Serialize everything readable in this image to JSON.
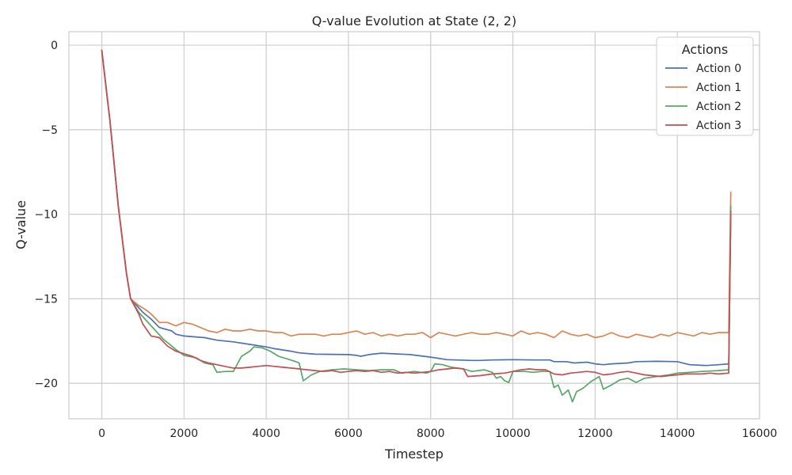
{
  "chart_data": {
    "type": "line",
    "title": "Q-value Evolution at State (2, 2)",
    "xlabel": "Timestep",
    "ylabel": "Q-value",
    "xlim": [
      -800,
      16000
    ],
    "ylim": [
      -22.1,
      0.8
    ],
    "xticks": [
      0,
      2000,
      4000,
      6000,
      8000,
      10000,
      12000,
      14000,
      16000
    ],
    "xtick_labels": [
      "0",
      "2000",
      "4000",
      "6000",
      "8000",
      "10000",
      "12000",
      "14000",
      "16000"
    ],
    "yticks": [
      0,
      -5,
      -10,
      -15,
      -20
    ],
    "ytick_labels": [
      "0",
      "−5",
      "−10",
      "−15",
      "−20"
    ],
    "grid": true,
    "legend": {
      "title": "Actions",
      "position": "top-right"
    },
    "series": [
      {
        "name": "Action 0",
        "color": "#4c72b0",
        "points": [
          [
            0,
            -0.3
          ],
          [
            200,
            -4.5
          ],
          [
            400,
            -9.5
          ],
          [
            600,
            -13.5
          ],
          [
            700,
            -15.0
          ],
          [
            1000,
            -15.8
          ],
          [
            1200,
            -16.2
          ],
          [
            1400,
            -16.7
          ],
          [
            1700,
            -16.9
          ],
          [
            1800,
            -17.1
          ],
          [
            2000,
            -17.2
          ],
          [
            2500,
            -17.3
          ],
          [
            2800,
            -17.45
          ],
          [
            3200,
            -17.55
          ],
          [
            3600,
            -17.7
          ],
          [
            4000,
            -17.85
          ],
          [
            4200,
            -17.95
          ],
          [
            4600,
            -18.1
          ],
          [
            4800,
            -18.2
          ],
          [
            5200,
            -18.28
          ],
          [
            6000,
            -18.3
          ],
          [
            6200,
            -18.35
          ],
          [
            6300,
            -18.4
          ],
          [
            6500,
            -18.3
          ],
          [
            6800,
            -18.22
          ],
          [
            7500,
            -18.3
          ],
          [
            8000,
            -18.45
          ],
          [
            8400,
            -18.6
          ],
          [
            9000,
            -18.65
          ],
          [
            9200,
            -18.65
          ],
          [
            9500,
            -18.62
          ],
          [
            10000,
            -18.6
          ],
          [
            10500,
            -18.62
          ],
          [
            10900,
            -18.62
          ],
          [
            11000,
            -18.72
          ],
          [
            11300,
            -18.72
          ],
          [
            11500,
            -18.8
          ],
          [
            11800,
            -18.75
          ],
          [
            12000,
            -18.85
          ],
          [
            12200,
            -18.9
          ],
          [
            12400,
            -18.85
          ],
          [
            12800,
            -18.8
          ],
          [
            13000,
            -18.72
          ],
          [
            13500,
            -18.7
          ],
          [
            14000,
            -18.72
          ],
          [
            14300,
            -18.9
          ],
          [
            14700,
            -18.95
          ],
          [
            15000,
            -18.9
          ],
          [
            15250,
            -18.85
          ],
          [
            15300,
            -10.0
          ]
        ]
      },
      {
        "name": "Action 1",
        "color": "#dd8452",
        "points": [
          [
            0,
            -0.3
          ],
          [
            200,
            -4.5
          ],
          [
            400,
            -9.5
          ],
          [
            600,
            -13.5
          ],
          [
            700,
            -15.0
          ],
          [
            900,
            -15.4
          ],
          [
            1100,
            -15.7
          ],
          [
            1200,
            -15.9
          ],
          [
            1400,
            -16.4
          ],
          [
            1600,
            -16.4
          ],
          [
            1800,
            -16.6
          ],
          [
            2000,
            -16.4
          ],
          [
            2200,
            -16.5
          ],
          [
            2400,
            -16.7
          ],
          [
            2600,
            -16.9
          ],
          [
            2800,
            -17.0
          ],
          [
            3000,
            -16.8
          ],
          [
            3200,
            -16.9
          ],
          [
            3400,
            -16.9
          ],
          [
            3600,
            -16.8
          ],
          [
            3800,
            -16.9
          ],
          [
            4000,
            -16.9
          ],
          [
            4200,
            -17.0
          ],
          [
            4400,
            -17.0
          ],
          [
            4600,
            -17.2
          ],
          [
            4800,
            -17.1
          ],
          [
            5000,
            -17.1
          ],
          [
            5200,
            -17.1
          ],
          [
            5400,
            -17.2
          ],
          [
            5600,
            -17.1
          ],
          [
            5800,
            -17.1
          ],
          [
            6000,
            -17.0
          ],
          [
            6200,
            -16.9
          ],
          [
            6400,
            -17.1
          ],
          [
            6600,
            -17.0
          ],
          [
            6800,
            -17.2
          ],
          [
            7000,
            -17.1
          ],
          [
            7200,
            -17.2
          ],
          [
            7400,
            -17.1
          ],
          [
            7600,
            -17.1
          ],
          [
            7800,
            -17.0
          ],
          [
            8000,
            -17.3
          ],
          [
            8200,
            -17.0
          ],
          [
            8400,
            -17.1
          ],
          [
            8600,
            -17.2
          ],
          [
            8800,
            -17.1
          ],
          [
            9000,
            -17.0
          ],
          [
            9200,
            -17.1
          ],
          [
            9400,
            -17.1
          ],
          [
            9600,
            -17.0
          ],
          [
            9800,
            -17.1
          ],
          [
            10000,
            -17.2
          ],
          [
            10200,
            -16.9
          ],
          [
            10400,
            -17.1
          ],
          [
            10600,
            -17.0
          ],
          [
            10800,
            -17.1
          ],
          [
            11000,
            -17.3
          ],
          [
            11200,
            -16.9
          ],
          [
            11400,
            -17.1
          ],
          [
            11600,
            -17.2
          ],
          [
            11800,
            -17.1
          ],
          [
            12000,
            -17.3
          ],
          [
            12200,
            -17.2
          ],
          [
            12400,
            -17.0
          ],
          [
            12600,
            -17.2
          ],
          [
            12800,
            -17.3
          ],
          [
            13000,
            -17.1
          ],
          [
            13200,
            -17.2
          ],
          [
            13400,
            -17.3
          ],
          [
            13600,
            -17.1
          ],
          [
            13800,
            -17.2
          ],
          [
            14000,
            -17.0
          ],
          [
            14200,
            -17.1
          ],
          [
            14400,
            -17.2
          ],
          [
            14600,
            -17.0
          ],
          [
            14800,
            -17.1
          ],
          [
            15000,
            -17.0
          ],
          [
            15250,
            -17.0
          ],
          [
            15300,
            -8.7
          ]
        ]
      },
      {
        "name": "Action 2",
        "color": "#55a868",
        "points": [
          [
            0,
            -0.3
          ],
          [
            200,
            -4.5
          ],
          [
            400,
            -9.5
          ],
          [
            600,
            -13.5
          ],
          [
            700,
            -15.0
          ],
          [
            900,
            -15.8
          ],
          [
            1200,
            -16.6
          ],
          [
            1500,
            -17.4
          ],
          [
            1800,
            -18.0
          ],
          [
            2000,
            -18.35
          ],
          [
            2300,
            -18.5
          ],
          [
            2500,
            -18.8
          ],
          [
            2700,
            -18.9
          ],
          [
            2800,
            -19.35
          ],
          [
            3000,
            -19.3
          ],
          [
            3200,
            -19.3
          ],
          [
            3400,
            -18.4
          ],
          [
            3600,
            -18.1
          ],
          [
            3700,
            -17.85
          ],
          [
            3900,
            -17.9
          ],
          [
            4100,
            -18.1
          ],
          [
            4300,
            -18.4
          ],
          [
            4500,
            -18.55
          ],
          [
            4700,
            -18.7
          ],
          [
            4800,
            -18.8
          ],
          [
            4900,
            -19.85
          ],
          [
            5100,
            -19.5
          ],
          [
            5300,
            -19.3
          ],
          [
            5600,
            -19.2
          ],
          [
            5900,
            -19.15
          ],
          [
            6200,
            -19.2
          ],
          [
            6500,
            -19.25
          ],
          [
            6800,
            -19.2
          ],
          [
            7100,
            -19.2
          ],
          [
            7300,
            -19.4
          ],
          [
            7600,
            -19.3
          ],
          [
            7900,
            -19.4
          ],
          [
            8000,
            -19.3
          ],
          [
            8100,
            -18.85
          ],
          [
            8300,
            -18.9
          ],
          [
            8500,
            -19.05
          ],
          [
            8800,
            -19.15
          ],
          [
            9000,
            -19.3
          ],
          [
            9300,
            -19.2
          ],
          [
            9500,
            -19.35
          ],
          [
            9600,
            -19.7
          ],
          [
            9700,
            -19.6
          ],
          [
            9800,
            -19.85
          ],
          [
            9900,
            -19.95
          ],
          [
            10000,
            -19.3
          ],
          [
            10300,
            -19.3
          ],
          [
            10500,
            -19.35
          ],
          [
            10700,
            -19.3
          ],
          [
            10900,
            -19.3
          ],
          [
            11000,
            -20.25
          ],
          [
            11100,
            -20.1
          ],
          [
            11200,
            -20.7
          ],
          [
            11350,
            -20.4
          ],
          [
            11450,
            -21.1
          ],
          [
            11550,
            -20.5
          ],
          [
            11700,
            -20.3
          ],
          [
            11900,
            -19.9
          ],
          [
            12100,
            -19.6
          ],
          [
            12200,
            -20.35
          ],
          [
            12400,
            -20.1
          ],
          [
            12600,
            -19.8
          ],
          [
            12800,
            -19.7
          ],
          [
            13000,
            -19.95
          ],
          [
            13200,
            -19.7
          ],
          [
            13500,
            -19.6
          ],
          [
            13800,
            -19.5
          ],
          [
            14000,
            -19.4
          ],
          [
            14300,
            -19.35
          ],
          [
            14600,
            -19.3
          ],
          [
            15000,
            -19.25
          ],
          [
            15250,
            -19.2
          ],
          [
            15300,
            -9.5
          ]
        ]
      },
      {
        "name": "Action 3",
        "color": "#c44e52",
        "points": [
          [
            0,
            -0.3
          ],
          [
            200,
            -4.5
          ],
          [
            400,
            -9.5
          ],
          [
            600,
            -13.5
          ],
          [
            700,
            -15.0
          ],
          [
            900,
            -15.9
          ],
          [
            1000,
            -16.5
          ],
          [
            1200,
            -17.2
          ],
          [
            1400,
            -17.3
          ],
          [
            1600,
            -17.8
          ],
          [
            1800,
            -18.1
          ],
          [
            2000,
            -18.25
          ],
          [
            2200,
            -18.4
          ],
          [
            2400,
            -18.65
          ],
          [
            2600,
            -18.8
          ],
          [
            2800,
            -18.9
          ],
          [
            3000,
            -19.0
          ],
          [
            3200,
            -19.1
          ],
          [
            3400,
            -19.1
          ],
          [
            3600,
            -19.05
          ],
          [
            3800,
            -19.0
          ],
          [
            4000,
            -18.95
          ],
          [
            4200,
            -19.0
          ],
          [
            4400,
            -19.05
          ],
          [
            4600,
            -19.1
          ],
          [
            4800,
            -19.15
          ],
          [
            5000,
            -19.2
          ],
          [
            5200,
            -19.25
          ],
          [
            5400,
            -19.3
          ],
          [
            5600,
            -19.25
          ],
          [
            5800,
            -19.35
          ],
          [
            6000,
            -19.3
          ],
          [
            6200,
            -19.25
          ],
          [
            6400,
            -19.3
          ],
          [
            6600,
            -19.25
          ],
          [
            6800,
            -19.35
          ],
          [
            7000,
            -19.3
          ],
          [
            7200,
            -19.4
          ],
          [
            7400,
            -19.35
          ],
          [
            7600,
            -19.4
          ],
          [
            7800,
            -19.35
          ],
          [
            8000,
            -19.3
          ],
          [
            8200,
            -19.2
          ],
          [
            8400,
            -19.15
          ],
          [
            8600,
            -19.1
          ],
          [
            8800,
            -19.15
          ],
          [
            8900,
            -19.6
          ],
          [
            9200,
            -19.55
          ],
          [
            9500,
            -19.45
          ],
          [
            9800,
            -19.4
          ],
          [
            10000,
            -19.3
          ],
          [
            10200,
            -19.2
          ],
          [
            10400,
            -19.15
          ],
          [
            10600,
            -19.2
          ],
          [
            10800,
            -19.2
          ],
          [
            11000,
            -19.45
          ],
          [
            11200,
            -19.5
          ],
          [
            11400,
            -19.4
          ],
          [
            11600,
            -19.35
          ],
          [
            11800,
            -19.3
          ],
          [
            12000,
            -19.35
          ],
          [
            12200,
            -19.5
          ],
          [
            12400,
            -19.45
          ],
          [
            12600,
            -19.35
          ],
          [
            12800,
            -19.3
          ],
          [
            13000,
            -19.4
          ],
          [
            13200,
            -19.5
          ],
          [
            13400,
            -19.55
          ],
          [
            13600,
            -19.6
          ],
          [
            13800,
            -19.55
          ],
          [
            14000,
            -19.5
          ],
          [
            14200,
            -19.45
          ],
          [
            14400,
            -19.45
          ],
          [
            14600,
            -19.45
          ],
          [
            14800,
            -19.4
          ],
          [
            15000,
            -19.45
          ],
          [
            15250,
            -19.4
          ],
          [
            15300,
            -9.8
          ]
        ]
      }
    ]
  }
}
